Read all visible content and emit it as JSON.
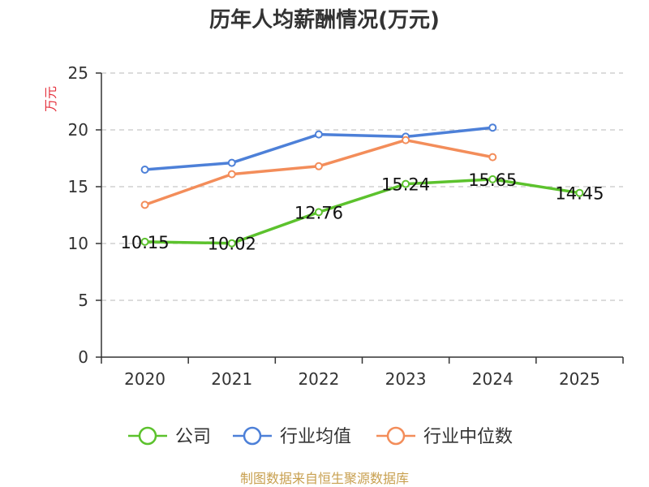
{
  "chart_data": {
    "type": "line",
    "title": "历年人均薪酬情况(万元)",
    "ylabel": "万元",
    "xlabel": "",
    "categories": [
      "2020",
      "2021",
      "2022",
      "2023",
      "2024",
      "2025"
    ],
    "ylim": [
      0,
      25
    ],
    "yticks": [
      0,
      5,
      10,
      15,
      20,
      25
    ],
    "grid": true,
    "legend_position": "bottom",
    "series": [
      {
        "name": "公司",
        "color": "#5cc22d",
        "values": [
          10.15,
          10.02,
          12.76,
          15.24,
          15.65,
          14.45
        ],
        "labels": [
          "10.15",
          "10.02",
          "12.76",
          "15.24",
          "15.65",
          "14.45"
        ],
        "show_labels": true
      },
      {
        "name": "行业均值",
        "color": "#4d80d8",
        "values": [
          16.5,
          17.1,
          19.6,
          19.4,
          20.2,
          null
        ],
        "show_labels": false
      },
      {
        "name": "行业中位数",
        "color": "#f38d5a",
        "values": [
          13.4,
          16.1,
          16.8,
          19.1,
          17.6,
          null
        ],
        "show_labels": false
      }
    ]
  },
  "footer": {
    "source": "制图数据来自恒生聚源数据库"
  }
}
